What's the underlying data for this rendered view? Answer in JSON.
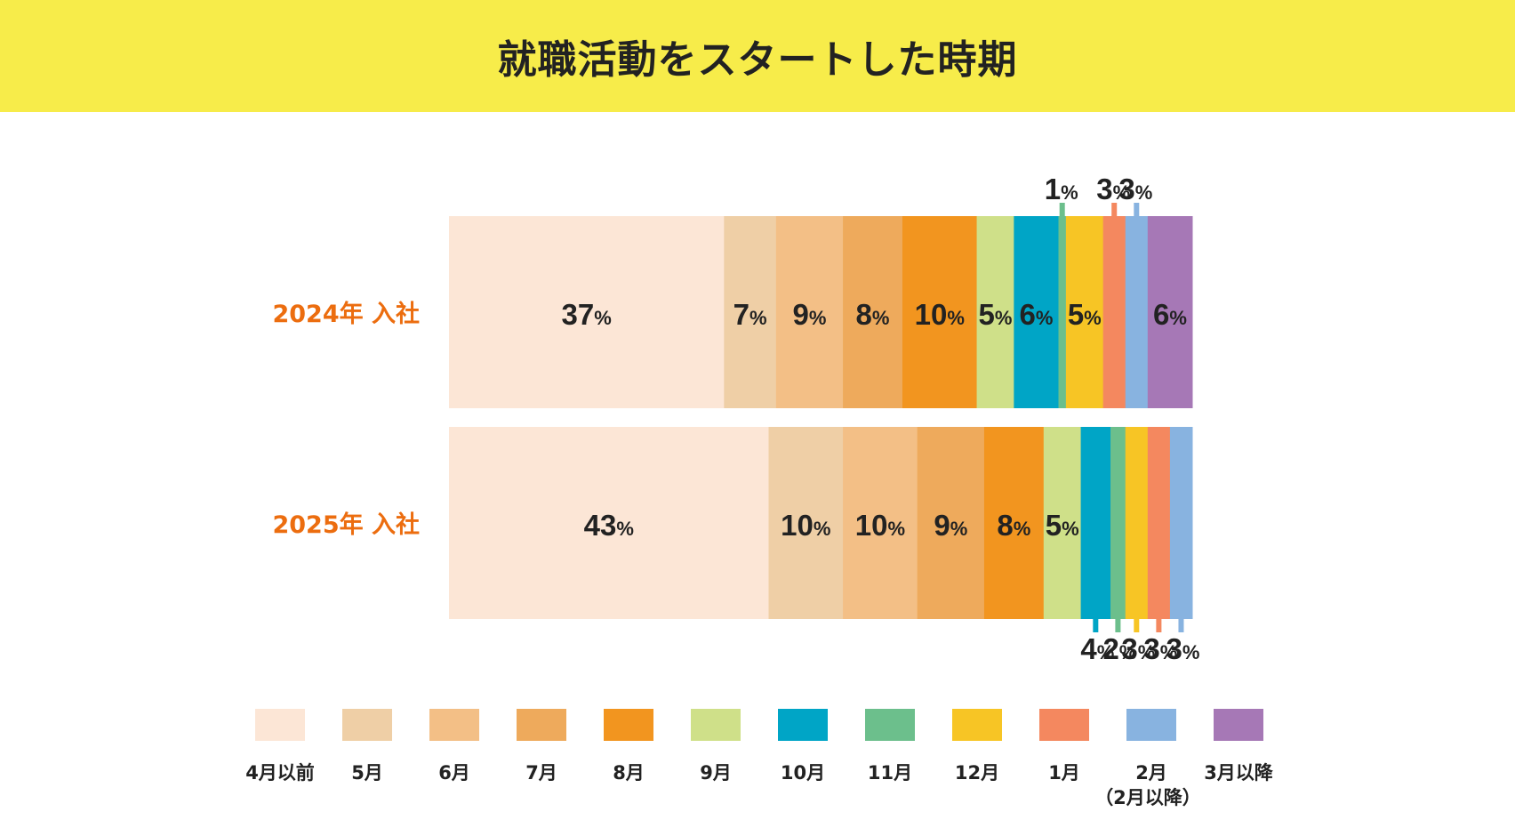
{
  "title": "就職活動をスタートした時期",
  "chart_data": {
    "type": "bar",
    "orientation": "horizontal",
    "stacked": true,
    "percent_symbol": "%",
    "title": "就職活動をスタートした時期",
    "categories": [
      "2024年 入社",
      "2025年 入社"
    ],
    "series": [
      {
        "name": "4月以前",
        "color": "#fce6d6",
        "values": [
          37,
          43
        ]
      },
      {
        "name": "5月",
        "color": "#efcfa6",
        "values": [
          7,
          10
        ]
      },
      {
        "name": "6月",
        "color": "#f3bf86",
        "values": [
          9,
          10
        ]
      },
      {
        "name": "7月",
        "color": "#eeaa5c",
        "values": [
          8,
          9
        ]
      },
      {
        "name": "8月",
        "color": "#f2951f",
        "values": [
          10,
          8
        ]
      },
      {
        "name": "9月",
        "color": "#cfe089",
        "values": [
          5,
          5
        ]
      },
      {
        "name": "10月",
        "color": "#00a5c6",
        "values": [
          6,
          4
        ]
      },
      {
        "name": "11月",
        "color": "#6cbf8c",
        "values": [
          1,
          2
        ]
      },
      {
        "name": "12月",
        "color": "#f7c525",
        "values": [
          5,
          3
        ]
      },
      {
        "name": "1月",
        "color": "#f4885f",
        "values": [
          3,
          3
        ]
      },
      {
        "name": "2月",
        "sub": "（2月以降）",
        "color": "#88b3e0",
        "values": [
          3,
          3
        ]
      },
      {
        "name": "3月以降",
        "color": "#a678b6",
        "values": [
          6,
          null
        ]
      }
    ]
  }
}
